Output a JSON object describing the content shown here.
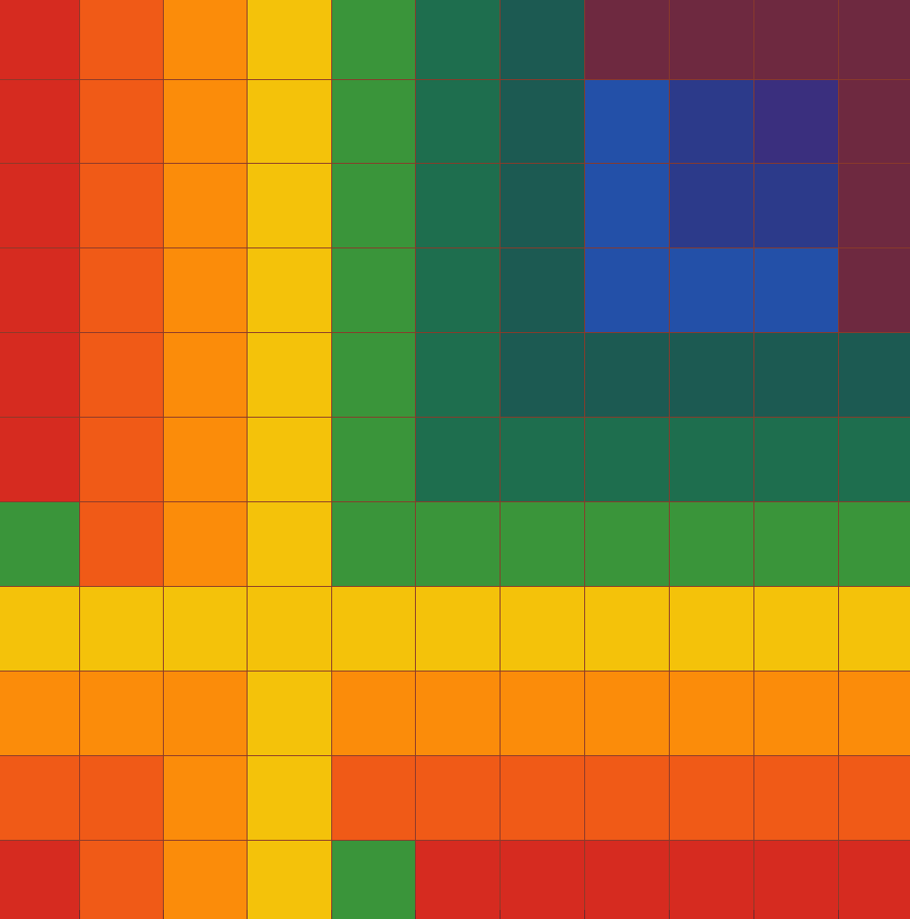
{
  "palette": {
    "R": "#d62b20",
    "RO": "#f05a17",
    "O": "#fb8c0a",
    "Y": "#f4c20a",
    "G": "#3a953a",
    "DG": "#1e6e4e",
    "DT": "#1c5a52",
    "M": "#6e2940",
    "B": "#2350a8",
    "I": "#2c3a8a",
    "V": "#3a2f7e"
  },
  "palette_names": {
    "R": "red",
    "RO": "red-orange",
    "O": "orange",
    "Y": "yellow",
    "G": "green",
    "DG": "dark-green",
    "DT": "dark-teal",
    "M": "maroon",
    "B": "blue",
    "I": "indigo",
    "V": "violet"
  },
  "grid": [
    [
      "R",
      "RO",
      "O",
      "Y",
      "G",
      "DG",
      "DT",
      "M",
      "M",
      "M",
      "M"
    ],
    [
      "R",
      "RO",
      "O",
      "Y",
      "G",
      "DG",
      "DT",
      "B",
      "I",
      "V",
      "M"
    ],
    [
      "R",
      "RO",
      "O",
      "Y",
      "G",
      "DG",
      "DT",
      "B",
      "I",
      "I",
      "M"
    ],
    [
      "R",
      "RO",
      "O",
      "Y",
      "G",
      "DG",
      "DT",
      "B",
      "B",
      "B",
      "M"
    ],
    [
      "R",
      "RO",
      "O",
      "Y",
      "G",
      "DG",
      "DT",
      "DT",
      "DT",
      "DT",
      "DT"
    ],
    [
      "R",
      "RO",
      "O",
      "Y",
      "G",
      "DG",
      "DG",
      "DG",
      "DG",
      "DG",
      "DG"
    ],
    [
      "G",
      "RO",
      "O",
      "Y",
      "G",
      "G",
      "G",
      "G",
      "G",
      "G",
      "G"
    ],
    [
      "Y",
      "Y",
      "Y",
      "Y",
      "Y",
      "Y",
      "Y",
      "Y",
      "Y",
      "Y",
      "Y"
    ],
    [
      "O",
      "O",
      "O",
      "Y",
      "O",
      "O",
      "O",
      "O",
      "O",
      "O",
      "O"
    ],
    [
      "RO",
      "RO",
      "O",
      "Y",
      "RO",
      "RO",
      "RO",
      "RO",
      "RO",
      "RO",
      "RO"
    ],
    [
      "R",
      "RO",
      "O",
      "Y",
      "G",
      "R",
      "R",
      "R",
      "R",
      "R",
      "R"
    ]
  ]
}
